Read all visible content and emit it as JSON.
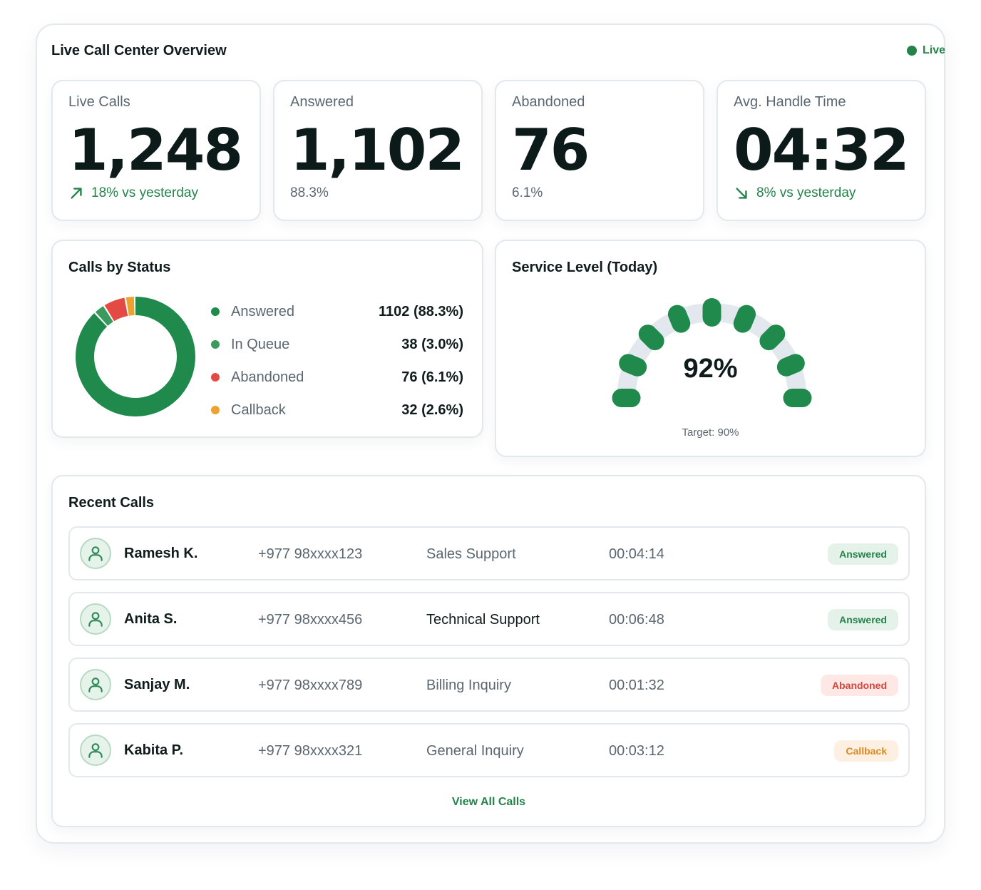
{
  "header": {
    "title": "Live Call Center Overview",
    "status": "Live"
  },
  "kpis": [
    {
      "label": "Live Calls",
      "value": "1,248",
      "sub": "18% vs yesterday",
      "trend": "up"
    },
    {
      "label": "Answered",
      "value": "1,102",
      "sub": "88.3%"
    },
    {
      "label": "Abandoned",
      "value": "76",
      "sub": "6.1%"
    },
    {
      "label": "Avg. Handle Time",
      "value": "04:32",
      "sub": "8% vs yesterday",
      "trend": "down"
    }
  ],
  "status_card": {
    "title": "Calls by Status",
    "items": [
      {
        "label": "Answered",
        "value": "1102 (88.3%)",
        "color": "#1f8a4c"
      },
      {
        "label": "In Queue",
        "value": "38 (3.0%)",
        "color": "#3a9a5e"
      },
      {
        "label": "Abandoned",
        "value": "76 (6.1%)",
        "color": "#e24a43"
      },
      {
        "label": "Callback",
        "value": "32 (2.6%)",
        "color": "#eca22e"
      }
    ]
  },
  "chart_data": {
    "type": "pie",
    "categories": [
      "Answered",
      "In Queue",
      "Abandoned",
      "Callback"
    ],
    "values": [
      1102,
      38,
      76,
      32
    ],
    "colors": [
      "#1f8a4c",
      "#3a9a5e",
      "#e24a43",
      "#eca22e"
    ]
  },
  "service_level": {
    "title": "Service Level (Today)",
    "value_label": "92%",
    "value": 92,
    "target_label": "Target: 90%",
    "color": "#1f8a4c",
    "track_color": "#e2e8ee"
  },
  "recent_calls": {
    "title": "Recent Calls",
    "rows": [
      {
        "name": "Ramesh K.",
        "phone": "+977 98xxxx123",
        "dept": "Sales Support",
        "duration": "00:04:14",
        "status": "Answered"
      },
      {
        "name": "Anita S.",
        "phone": "+977 98xxxx456",
        "dept": "Technical Support",
        "duration": "00:06:48",
        "status": "Answered"
      },
      {
        "name": "Sanjay M.",
        "phone": "+977 98xxxx789",
        "dept": "Billing Inquiry",
        "duration": "00:01:32",
        "status": "Abandoned"
      },
      {
        "name": "Kabita P.",
        "phone": "+977 98xxxx321",
        "dept": "General Inquiry",
        "duration": "00:03:12",
        "status": "Callback"
      }
    ],
    "view_all": "View All Calls"
  },
  "icons": {
    "trend_up": "arrow-up-right-icon",
    "trend_down": "arrow-down-right-icon",
    "avatar": "user-icon",
    "live": "status-dot-icon"
  }
}
